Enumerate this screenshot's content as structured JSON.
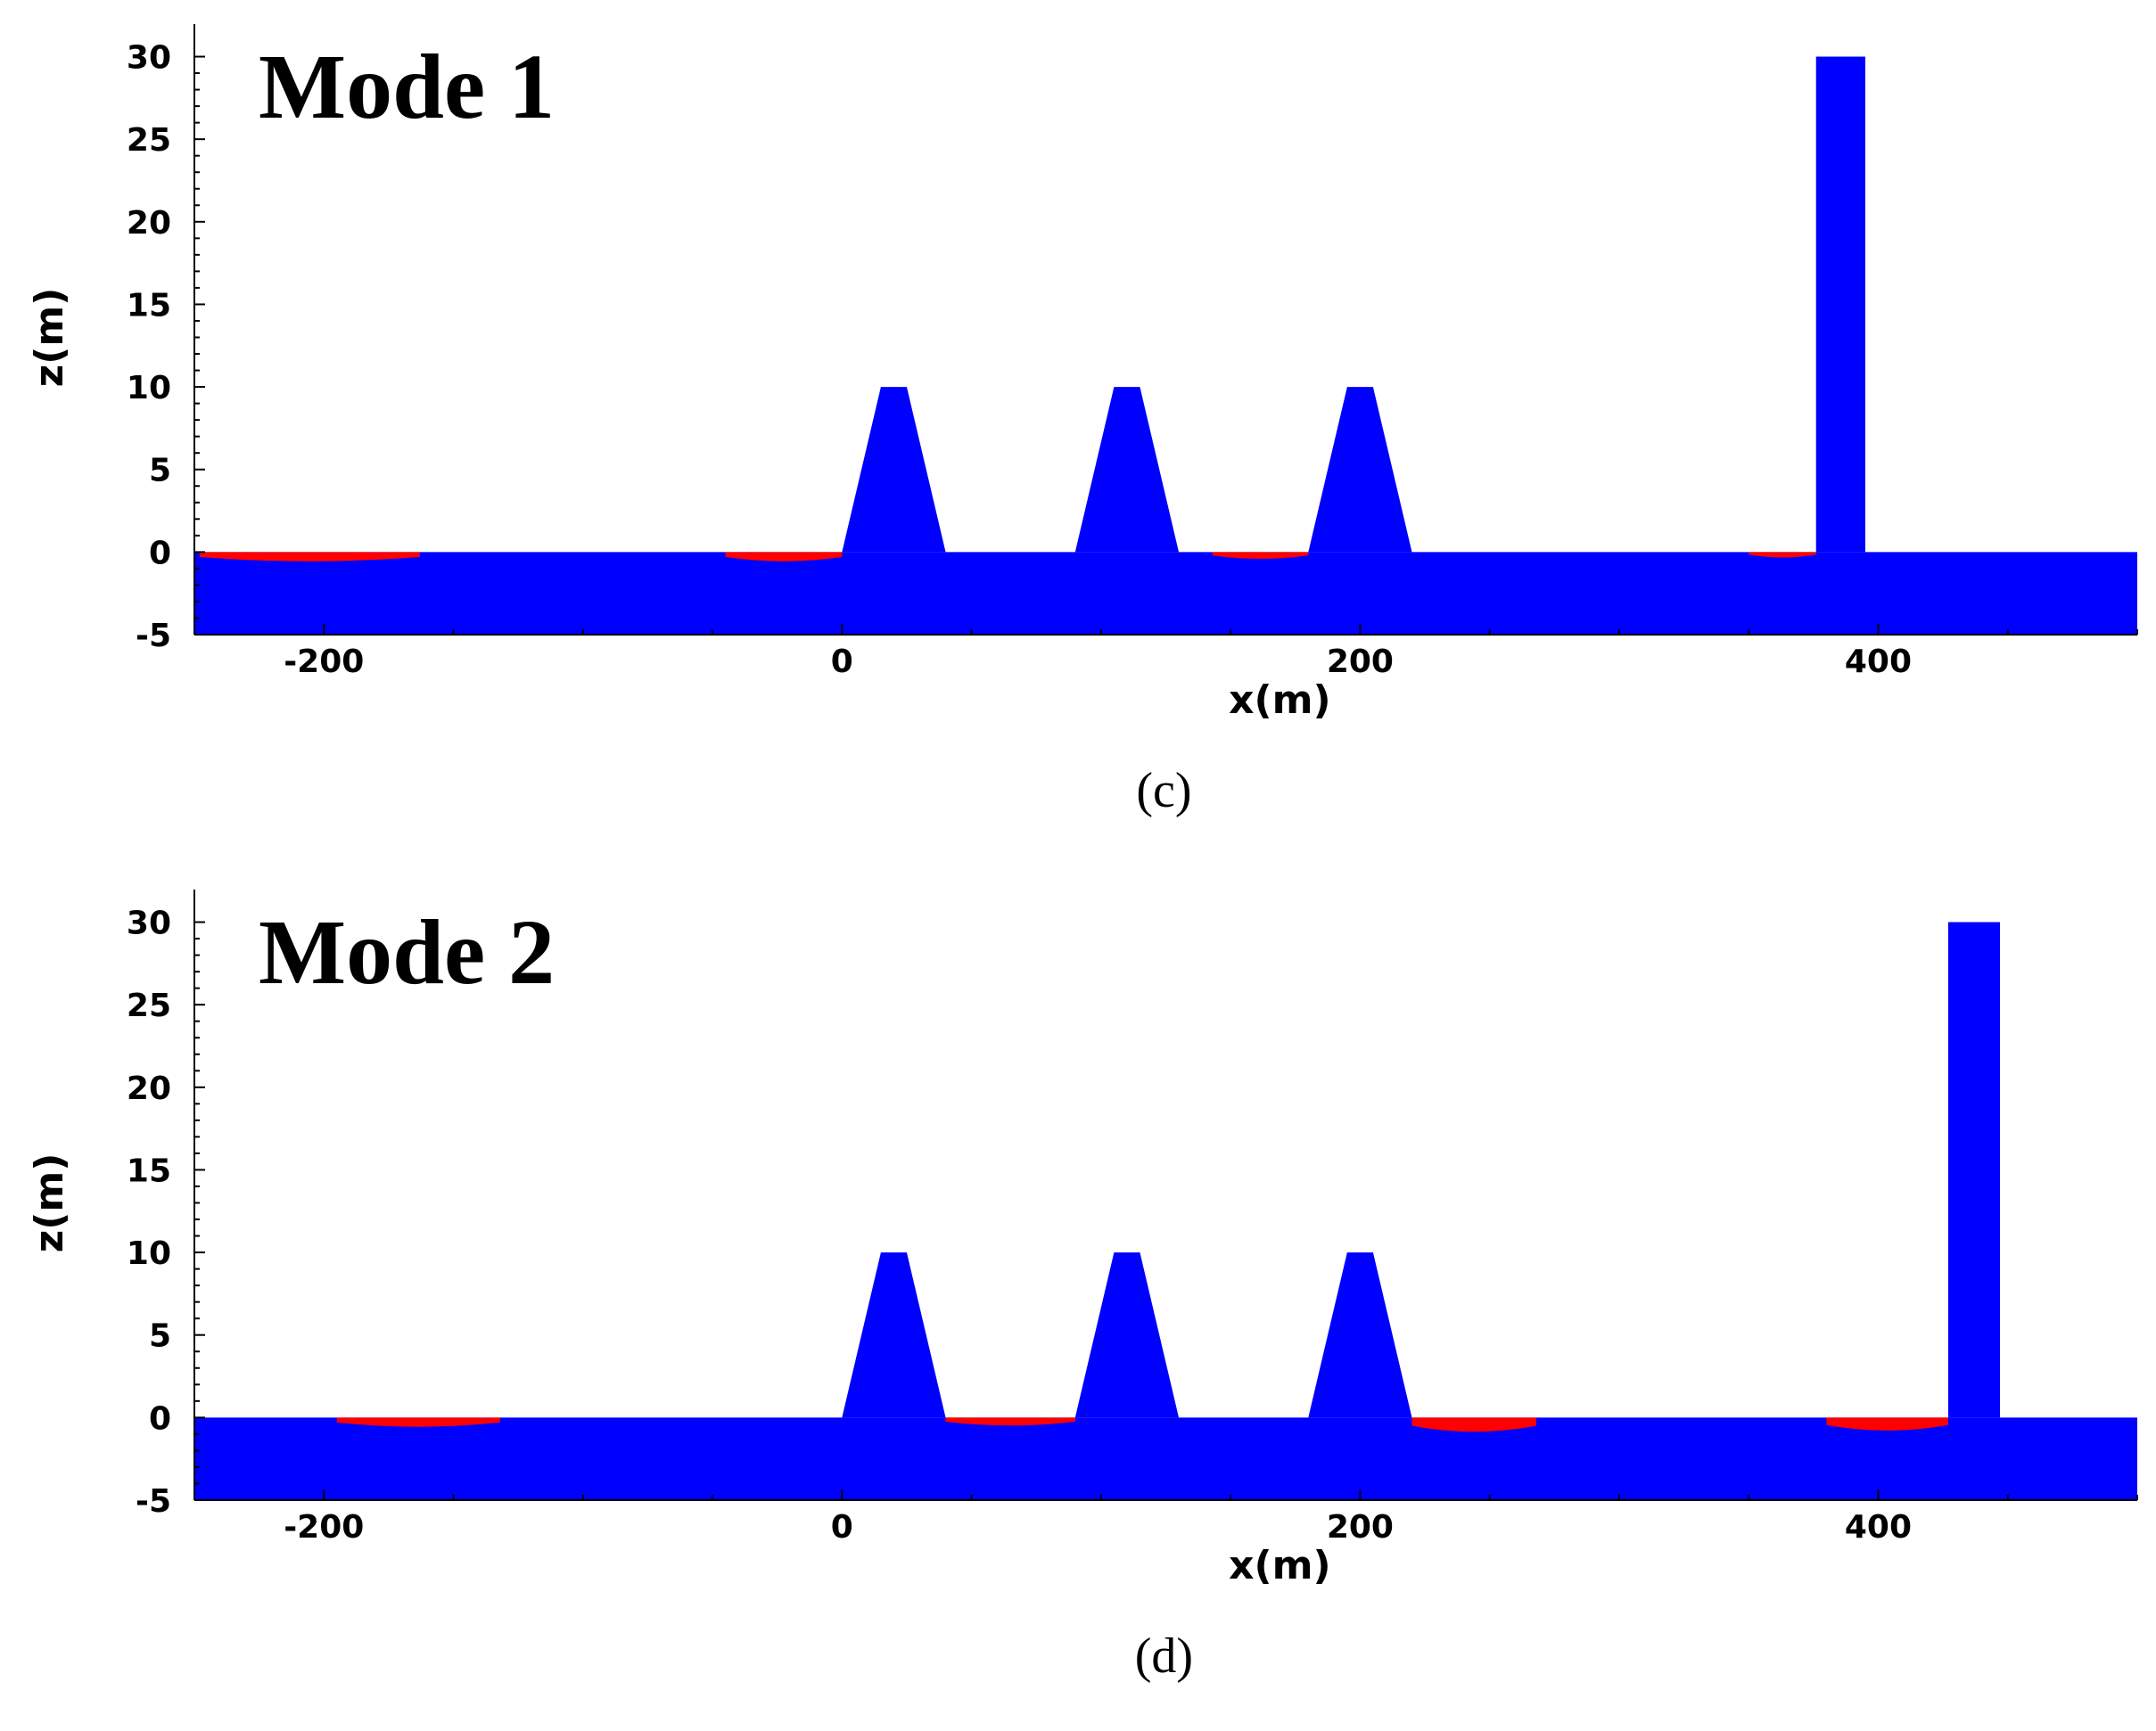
{
  "chart_data": [
    {
      "type": "area",
      "title": "Mode 1",
      "caption": "(c)",
      "xlabel": "x(m)",
      "ylabel": "z(m)",
      "xlim": [
        -250,
        500
      ],
      "ylim": [
        -5,
        31
      ],
      "x_ticks": [
        -200,
        0,
        200,
        400
      ],
      "y_ticks": [
        -5,
        0,
        5,
        10,
        15,
        20,
        25,
        30
      ],
      "grid": false,
      "colors": {
        "structure": "#0000ff",
        "scour": "#ff0000"
      },
      "structures": [
        {
          "name": "trapezoid-1",
          "base": [
            0,
            40
          ],
          "top": [
            15,
            25
          ],
          "height": 10
        },
        {
          "name": "trapezoid-2",
          "base": [
            90,
            130
          ],
          "top": [
            105,
            115
          ],
          "height": 10
        },
        {
          "name": "trapezoid-3",
          "base": [
            180,
            220
          ],
          "top": [
            195,
            205
          ],
          "height": 10
        },
        {
          "name": "wall",
          "x": [
            376,
            395
          ],
          "height": 30
        }
      ],
      "scour_zones": [
        {
          "x": [
            -248,
            -163
          ],
          "depth": 0.6
        },
        {
          "x": [
            -45,
            0
          ],
          "depth": 0.6
        },
        {
          "x": [
            143,
            180
          ],
          "depth": 0.4
        },
        {
          "x": [
            350,
            376
          ],
          "depth": 0.3
        }
      ]
    },
    {
      "type": "area",
      "title": "Mode 2",
      "caption": "(d)",
      "xlabel": "x(m)",
      "ylabel": "z(m)",
      "xlim": [
        -250,
        500
      ],
      "ylim": [
        -5,
        31
      ],
      "x_ticks": [
        -200,
        0,
        200,
        400
      ],
      "y_ticks": [
        -5,
        0,
        5,
        10,
        15,
        20,
        25,
        30
      ],
      "grid": false,
      "colors": {
        "structure": "#0000ff",
        "scour": "#ff0000"
      },
      "structures": [
        {
          "name": "trapezoid-1",
          "base": [
            0,
            40
          ],
          "top": [
            15,
            25
          ],
          "height": 10
        },
        {
          "name": "trapezoid-2",
          "base": [
            90,
            130
          ],
          "top": [
            105,
            115
          ],
          "height": 10
        },
        {
          "name": "trapezoid-3",
          "base": [
            180,
            220
          ],
          "top": [
            195,
            205
          ],
          "height": 10
        },
        {
          "name": "wall",
          "x": [
            427,
            447
          ],
          "height": 30
        }
      ],
      "scour_zones": [
        {
          "x": [
            -195,
            -132
          ],
          "depth": 0.6
        },
        {
          "x": [
            40,
            90
          ],
          "depth": 0.5
        },
        {
          "x": [
            220,
            268
          ],
          "depth": 1.0
        },
        {
          "x": [
            380,
            427
          ],
          "depth": 0.9
        }
      ]
    }
  ]
}
